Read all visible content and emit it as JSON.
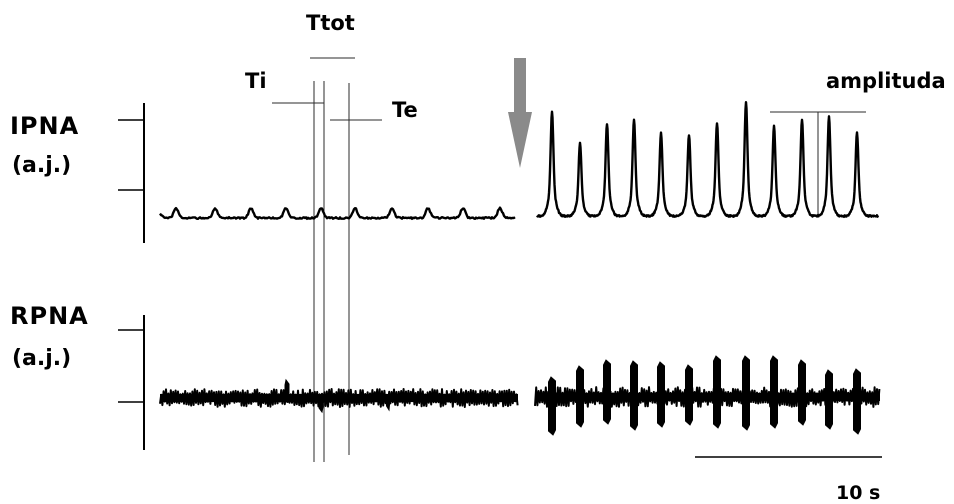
{
  "figure": {
    "labels": {
      "ttot": "Ttot",
      "ti": "Ti",
      "te": "Te",
      "amplitude": "amplituda",
      "time_scale": "10 s"
    },
    "traces": [
      {
        "name": "IPNA",
        "unit": "(a.j.)"
      },
      {
        "name": "RPNA",
        "unit": "(a.j.)"
      }
    ],
    "colors": {
      "trace": "#000000",
      "guide": "#2b2b2b",
      "arrow": "#8a8a8a",
      "background": "#ffffff"
    }
  }
}
